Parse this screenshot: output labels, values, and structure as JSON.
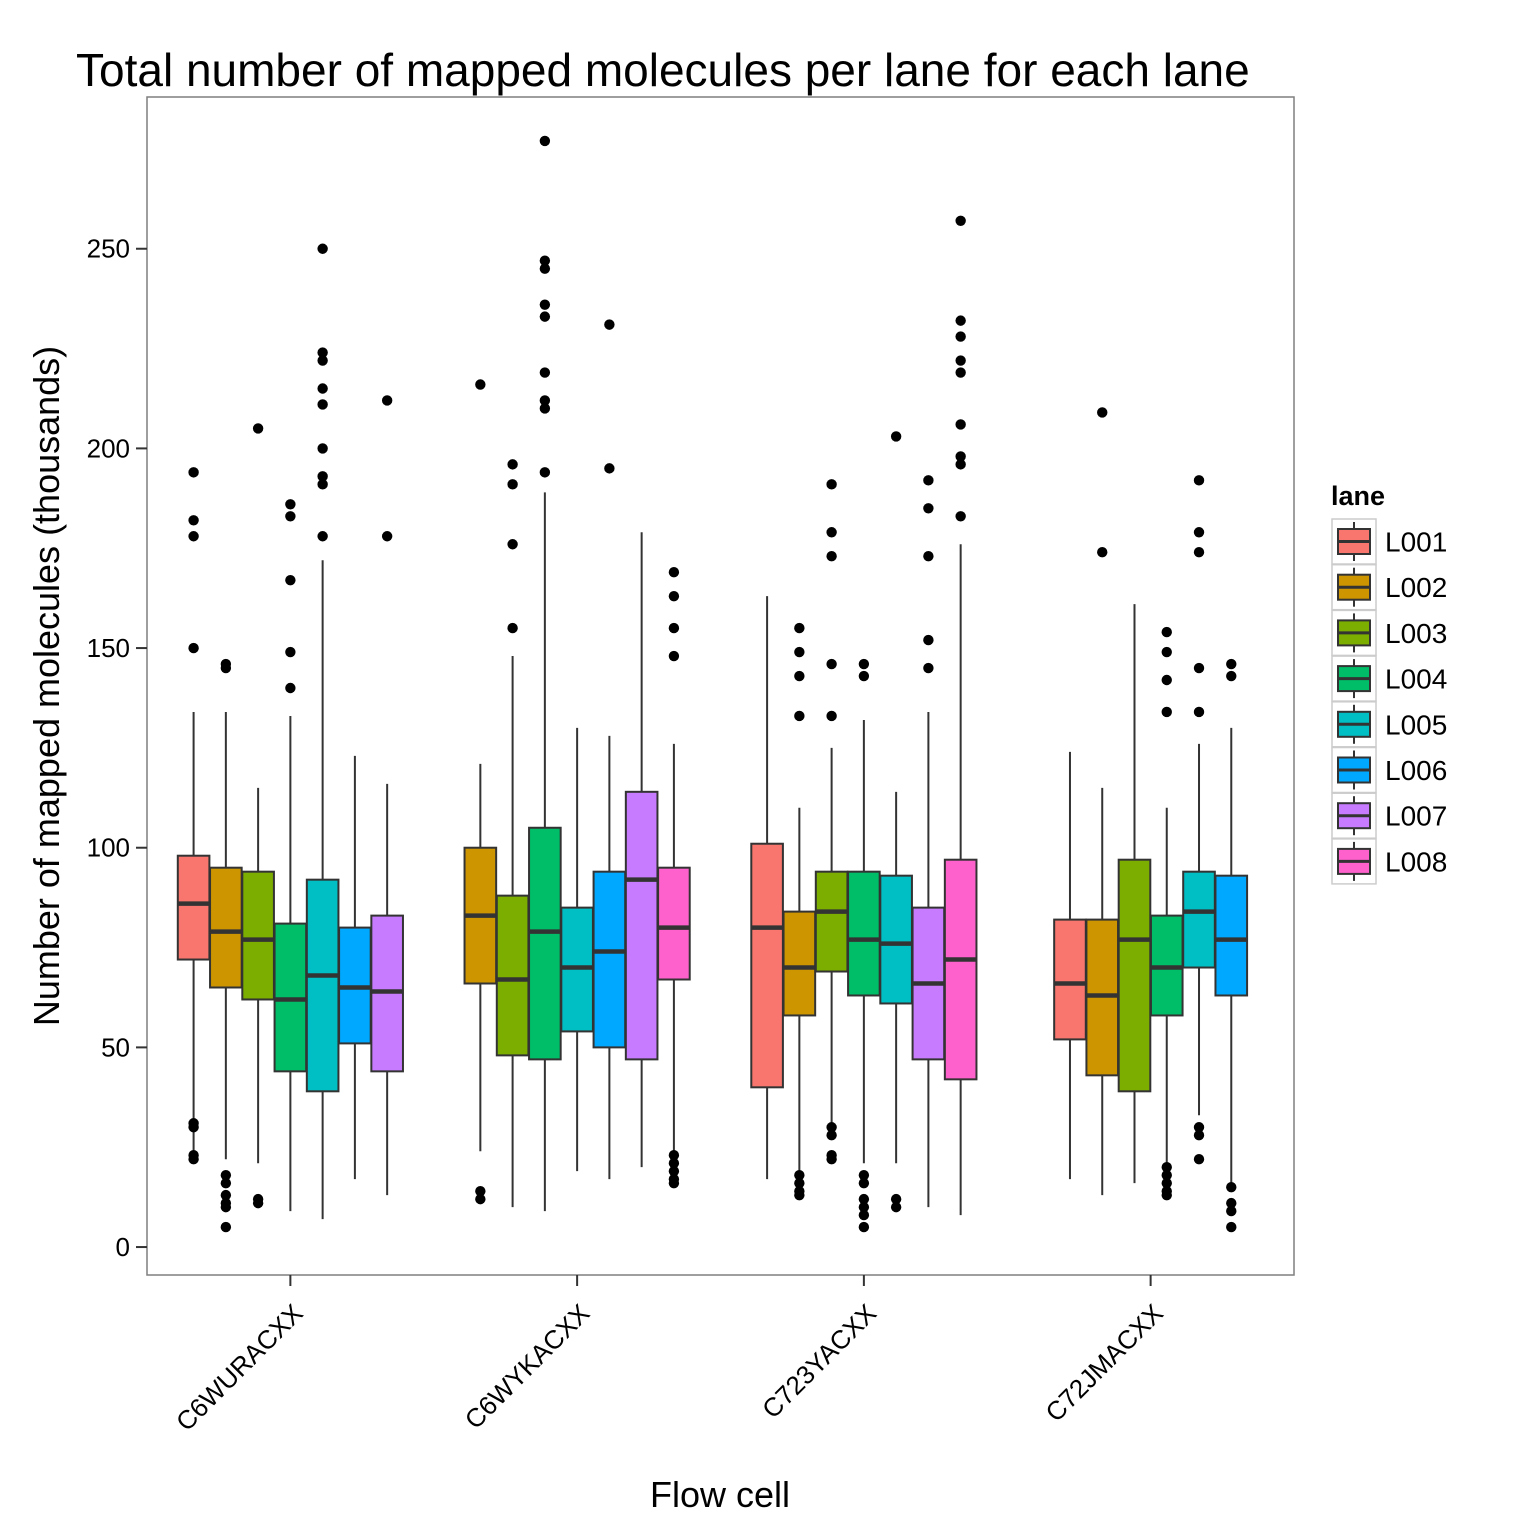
{
  "chart_data": {
    "type": "boxplot",
    "title": "Total number of mapped molecules per lane for each lane",
    "xlabel": "Flow cell",
    "ylabel": "Number of mapped molecules (thousands)",
    "ylim": [
      -7,
      288
    ],
    "yticks": [
      0,
      50,
      100,
      150,
      200,
      250
    ],
    "categories": [
      "C6WURACXX",
      "C6WYKACXX",
      "C723YACXX",
      "C72JMACXX"
    ],
    "legend": {
      "title": "lane",
      "position": "right",
      "entries": [
        "L001",
        "L002",
        "L003",
        "L004",
        "L005",
        "L006",
        "L007",
        "L008"
      ]
    },
    "colors": {
      "L001": "#F8766D",
      "L002": "#CD9600",
      "L003": "#7CAE00",
      "L004": "#00BE67",
      "L005": "#00BFC4",
      "L006": "#00A9FF",
      "L007": "#C77CFF",
      "L008": "#FF61CC",
      "panel_border": "#7f7f7f",
      "box_stroke": "#333333",
      "outlier": "#000000"
    },
    "grid": false,
    "groups": [
      {
        "flowcell": "C6WURACXX",
        "lanes": [
          "L001",
          "L002",
          "L003",
          "L004",
          "L005",
          "L006",
          "L007"
        ],
        "boxes": [
          {
            "lane": "L001",
            "whisker_low": 22,
            "q1": 72,
            "median": 86,
            "q3": 98,
            "whisker_high": 134,
            "outliers": [
              194,
              182,
              178,
              150,
              31,
              30,
              23,
              22
            ]
          },
          {
            "lane": "L002",
            "whisker_low": 22,
            "q1": 65,
            "median": 79,
            "q3": 95,
            "whisker_high": 134,
            "outliers": [
              146,
              145,
              18,
              16,
              13,
              11,
              10,
              5
            ]
          },
          {
            "lane": "L003",
            "whisker_low": 21,
            "q1": 62,
            "median": 77,
            "q3": 94,
            "whisker_high": 115,
            "outliers": [
              205,
              12,
              11
            ]
          },
          {
            "lane": "L004",
            "whisker_low": 9,
            "q1": 44,
            "median": 62,
            "q3": 81,
            "whisker_high": 133,
            "outliers": [
              186,
              183,
              167,
              149,
              140
            ]
          },
          {
            "lane": "L005",
            "whisker_low": 7,
            "q1": 39,
            "median": 68,
            "q3": 92,
            "whisker_high": 172,
            "outliers": [
              250,
              224,
              222,
              215,
              211,
              200,
              193,
              191,
              178
            ]
          },
          {
            "lane": "L006",
            "whisker_low": 17,
            "q1": 51,
            "median": 65,
            "q3": 80,
            "whisker_high": 123,
            "outliers": []
          },
          {
            "lane": "L007",
            "whisker_low": 13,
            "q1": 44,
            "median": 64,
            "q3": 83,
            "whisker_high": 116,
            "outliers": [
              212,
              178
            ]
          }
        ]
      },
      {
        "flowcell": "C6WYKACXX",
        "lanes": [
          "L002",
          "L003",
          "L004",
          "L005",
          "L006",
          "L007",
          "L008"
        ],
        "boxes": [
          {
            "lane": "L002",
            "whisker_low": 24,
            "q1": 66,
            "median": 83,
            "q3": 100,
            "whisker_high": 121,
            "outliers": [
              216,
              14,
              12
            ]
          },
          {
            "lane": "L003",
            "whisker_low": 10,
            "q1": 48,
            "median": 67,
            "q3": 88,
            "whisker_high": 148,
            "outliers": [
              196,
              191,
              176,
              155
            ]
          },
          {
            "lane": "L004",
            "whisker_low": 9,
            "q1": 47,
            "median": 79,
            "q3": 105,
            "whisker_high": 189,
            "outliers": [
              277,
              247,
              245,
              236,
              233,
              219,
              212,
              210,
              194
            ]
          },
          {
            "lane": "L005",
            "whisker_low": 19,
            "q1": 54,
            "median": 70,
            "q3": 85,
            "whisker_high": 130,
            "outliers": []
          },
          {
            "lane": "L006",
            "whisker_low": 17,
            "q1": 50,
            "median": 74,
            "q3": 94,
            "whisker_high": 128,
            "outliers": [
              231,
              195
            ]
          },
          {
            "lane": "L007",
            "whisker_low": 20,
            "q1": 47,
            "median": 92,
            "q3": 114,
            "whisker_high": 179,
            "outliers": []
          },
          {
            "lane": "L008",
            "whisker_low": 22,
            "q1": 67,
            "median": 80,
            "q3": 95,
            "whisker_high": 126,
            "outliers": [
              169,
              163,
              155,
              148,
              23,
              21,
              19,
              17,
              16
            ]
          }
        ]
      },
      {
        "flowcell": "C723YACXX",
        "lanes": [
          "L001",
          "L002",
          "L003",
          "L004",
          "L005",
          "L007",
          "L008"
        ],
        "boxes": [
          {
            "lane": "L001",
            "whisker_low": 17,
            "q1": 40,
            "median": 80,
            "q3": 101,
            "whisker_high": 163,
            "outliers": []
          },
          {
            "lane": "L002",
            "whisker_low": 17,
            "q1": 58,
            "median": 70,
            "q3": 84,
            "whisker_high": 110,
            "outliers": [
              155,
              149,
              143,
              133,
              18,
              16,
              14,
              13
            ]
          },
          {
            "lane": "L003",
            "whisker_low": 31,
            "q1": 69,
            "median": 84,
            "q3": 94,
            "whisker_high": 125,
            "outliers": [
              191,
              179,
              173,
              146,
              133,
              30,
              28,
              23,
              22
            ]
          },
          {
            "lane": "L004",
            "whisker_low": 21,
            "q1": 63,
            "median": 77,
            "q3": 94,
            "whisker_high": 132,
            "outliers": [
              146,
              143,
              18,
              16,
              12,
              10,
              8,
              5
            ]
          },
          {
            "lane": "L005",
            "whisker_low": 21,
            "q1": 61,
            "median": 76,
            "q3": 93,
            "whisker_high": 114,
            "outliers": [
              203,
              12,
              10
            ]
          },
          {
            "lane": "L007",
            "whisker_low": 10,
            "q1": 47,
            "median": 66,
            "q3": 85,
            "whisker_high": 134,
            "outliers": [
              192,
              185,
              173,
              152,
              145
            ]
          },
          {
            "lane": "L008",
            "whisker_low": 8,
            "q1": 42,
            "median": 72,
            "q3": 97,
            "whisker_high": 176,
            "outliers": [
              257,
              232,
              228,
              222,
              219,
              206,
              198,
              196,
              183
            ]
          }
        ]
      },
      {
        "flowcell": "C72JMACXX",
        "lanes": [
          "L001",
          "L002",
          "L003",
          "L004",
          "L005",
          "L006"
        ],
        "boxes": [
          {
            "lane": "L001",
            "whisker_low": 17,
            "q1": 52,
            "median": 66,
            "q3": 82,
            "whisker_high": 124,
            "outliers": []
          },
          {
            "lane": "L002",
            "whisker_low": 13,
            "q1": 43,
            "median": 63,
            "q3": 82,
            "whisker_high": 115,
            "outliers": [
              209,
              174
            ]
          },
          {
            "lane": "L003",
            "whisker_low": 16,
            "q1": 39,
            "median": 77,
            "q3": 97,
            "whisker_high": 161,
            "outliers": []
          },
          {
            "lane": "L004",
            "whisker_low": 20,
            "q1": 58,
            "median": 70,
            "q3": 83,
            "whisker_high": 110,
            "outliers": [
              154,
              149,
              142,
              134,
              20,
              18,
              16,
              14,
              13
            ]
          },
          {
            "lane": "L005",
            "whisker_low": 33,
            "q1": 70,
            "median": 84,
            "q3": 94,
            "whisker_high": 126,
            "outliers": [
              192,
              179,
              174,
              145,
              134,
              30,
              28,
              22
            ]
          },
          {
            "lane": "L006",
            "whisker_low": 16,
            "q1": 63,
            "median": 77,
            "q3": 93,
            "whisker_high": 130,
            "outliers": [
              146,
              143,
              15,
              11,
              9,
              5
            ]
          }
        ]
      }
    ]
  }
}
